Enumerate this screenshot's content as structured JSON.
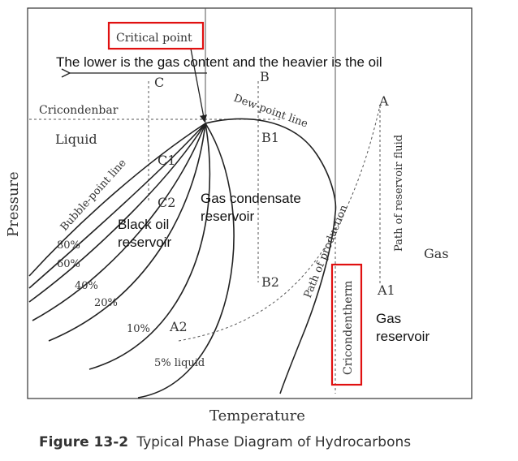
{
  "diagram": {
    "axis_y": "Pressure",
    "axis_x": "Temperature",
    "critical_point": "Critical point",
    "annotation": "The lower is the gas content and the heavier is the oil",
    "cricondenbar": "Cricondenbar",
    "cricondentherm": "Cricondentherm",
    "region_liquid": "Liquid",
    "region_gas": "Gas",
    "bubble_point_line": "Bubble-point line",
    "dew_point_line": "Dew-point line",
    "path_reservoir_fluid": "Path of reservoir fluid",
    "path_production": "Path of production",
    "black_oil_line1": "Black oil",
    "black_oil_line2": "reservoir",
    "gas_condensate_line1": "Gas condensate",
    "gas_condensate_line2": "reservoir",
    "gas_reservoir_line1": "Gas",
    "gas_reservoir_line2": "reservoir",
    "points": {
      "A": "A",
      "A1": "A1",
      "A2": "A2",
      "B": "B",
      "B1": "B1",
      "B2": "B2",
      "C": "C",
      "C1": "C1",
      "C2": "C2"
    },
    "quality_lines": {
      "p80": "80%",
      "p60": "60%",
      "p40": "40%",
      "p20": "20%",
      "p10": "10%",
      "p5": "5% liquid"
    }
  },
  "caption": {
    "label": "Figure 13-2",
    "text": "Typical Phase Diagram of Hydrocarbons"
  }
}
